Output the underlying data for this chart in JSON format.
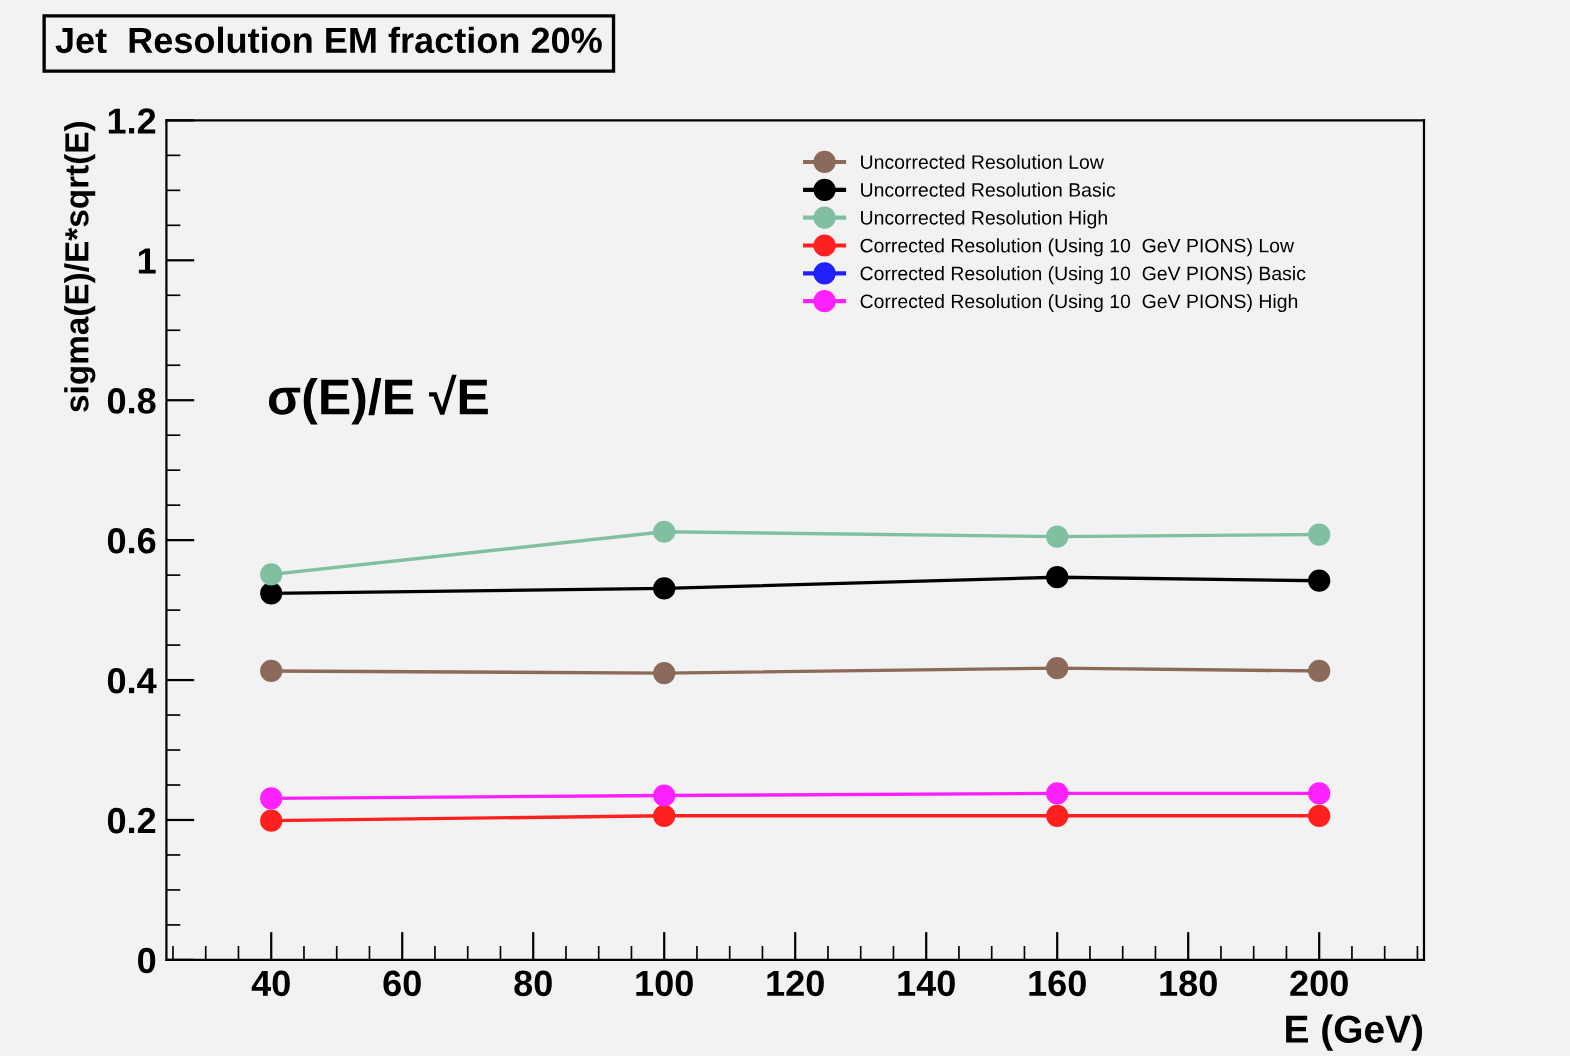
{
  "chart_data": {
    "type": "line",
    "title": "Jet  Resolution EM fraction 20%",
    "xlabel": "E (GeV)",
    "ylabel": "sigma(E)/E*sqrt(E)",
    "x": [
      40,
      100,
      160,
      200
    ],
    "series": [
      {
        "name": "Uncorrected Resolution Low",
        "color": "#8b6a5a",
        "values": [
          0.413,
          0.41,
          0.417,
          0.413
        ]
      },
      {
        "name": "Uncorrected Resolution Basic",
        "color": "#000000",
        "values": [
          0.524,
          0.531,
          0.547,
          0.542
        ]
      },
      {
        "name": "Uncorrected Resolution High",
        "color": "#80c0a0",
        "values": [
          0.551,
          0.612,
          0.605,
          0.608
        ]
      },
      {
        "name": "Corrected Resolution (Using 10  GeV PIONS) Low",
        "color": "#ff2020",
        "values": [
          0.199,
          0.206,
          0.206,
          0.206
        ]
      },
      {
        "name": "Corrected Resolution (Using 10  GeV PIONS) Basic",
        "color": "#2020ff",
        "values": [
          null,
          null,
          null,
          null
        ]
      },
      {
        "name": "Corrected Resolution (Using 10  GeV PIONS) High",
        "color": "#ff20ff",
        "values": [
          0.231,
          0.235,
          0.238,
          0.238
        ]
      }
    ],
    "annotations": [
      "σ(E)/E √E"
    ],
    "xlim": [
      24,
      216
    ],
    "xticks": [
      40,
      60,
      80,
      100,
      120,
      140,
      160,
      180,
      200
    ],
    "ylim": [
      0,
      1.2
    ],
    "yticks": [
      0,
      0.2,
      0.4,
      0.6,
      0.8,
      1,
      1.2
    ],
    "grid": false,
    "legend": "top right",
    "marker": "circle",
    "line_style": "solid"
  }
}
